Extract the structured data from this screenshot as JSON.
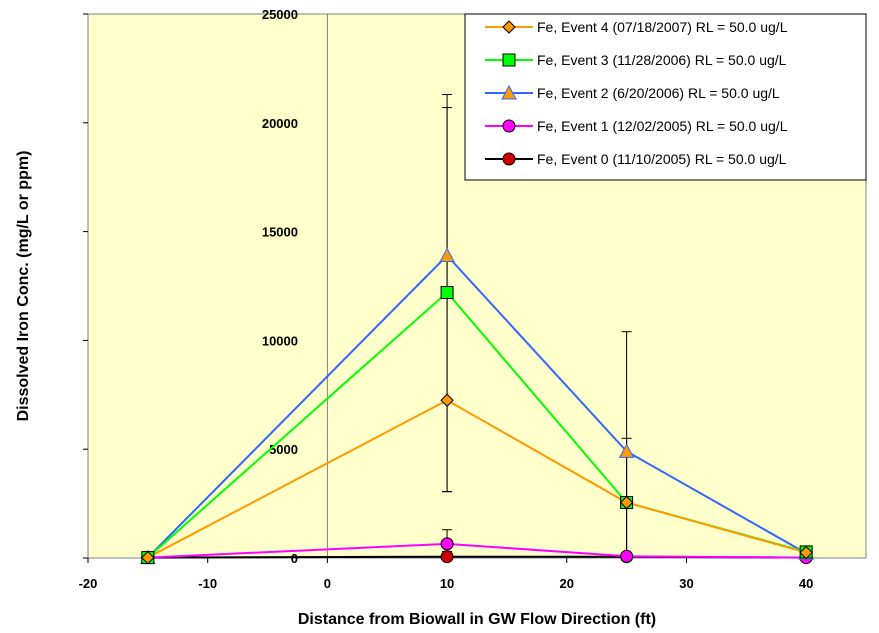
{
  "chart_data": {
    "type": "line",
    "xlabel": "Distance from Biowall in GW Flow Direction (ft)",
    "ylabel": "Dissolved Iron Conc. (mg/L or ppm)",
    "xlim": [
      -20,
      45
    ],
    "ylim": [
      0,
      25000
    ],
    "x_ticks": [
      -20,
      -10,
      0,
      10,
      20,
      30,
      40
    ],
    "y_ticks": [
      0,
      5000,
      10000,
      15000,
      20000,
      25000
    ],
    "plot_background": "#ffffcc",
    "grid": "major vertical line at x=0 only",
    "legend_position": "top-right",
    "series": [
      {
        "name": "Fe, Event 4 (07/18/2007)   RL = 50.0 ug/L",
        "color": "#ff9900",
        "marker": "diamond",
        "x": [
          -15,
          10,
          25,
          40
        ],
        "y": [
          20,
          7250,
          2550,
          250
        ]
      },
      {
        "name": "Fe, Event 3 (11/28/2006)   RL = 50.0 ug/L",
        "color": "#00ff00",
        "marker": "square",
        "x": [
          -15,
          10,
          25,
          40
        ],
        "y": [
          20,
          12200,
          2550,
          280
        ]
      },
      {
        "name": "Fe, Event 2 (6/20/2006)     RL = 50.0 ug/L",
        "color": "#3366ff",
        "marker": "triangle",
        "x": [
          -15,
          10,
          25,
          40
        ],
        "y": [
          20,
          13900,
          4900,
          220
        ]
      },
      {
        "name": "Fe, Event 1 (12/02/2005)     RL = 50.0 ug/L",
        "color": "#ff00ff",
        "marker": "circle",
        "x": [
          -15,
          10,
          25,
          40
        ],
        "y": [
          20,
          650,
          80,
          20
        ]
      },
      {
        "name": "Fe, Event 0 (11/10/2005)   RL = 50.0 ug/L",
        "color": "#000000",
        "marker": "circle-red",
        "x": [
          -15,
          10,
          25,
          40
        ],
        "y": [
          20,
          60,
          60,
          20
        ]
      }
    ],
    "error_bars": [
      {
        "x": 10,
        "low": 3050,
        "high": 21300
      },
      {
        "x": 10,
        "low": 3050,
        "high": 20700
      },
      {
        "x": 10,
        "low": 300,
        "high": 1300
      },
      {
        "x": 25,
        "low": 0,
        "high": 10400
      },
      {
        "x": 25,
        "low": 0,
        "high": 5500
      }
    ]
  }
}
